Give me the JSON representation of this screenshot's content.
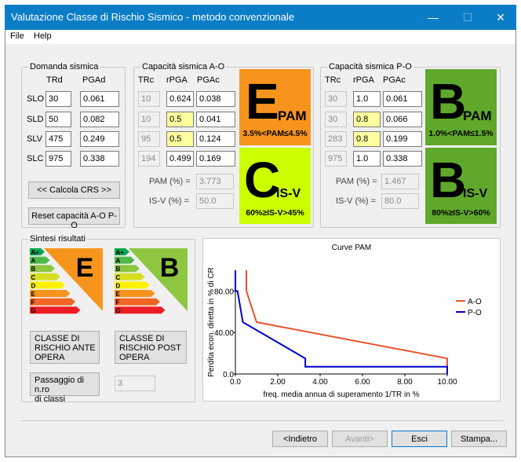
{
  "window": {
    "title": "Valutazione Classe di Rischio Sismico - metodo convenzionale",
    "minimize": "—",
    "maximize": "☐",
    "close": "✕"
  },
  "menu": {
    "file": "File",
    "help": "Help"
  },
  "domanda": {
    "title": "Domanda sismica",
    "col_trd": "TRd",
    "col_pgad": "PGAd",
    "rows": [
      {
        "label": "SLO",
        "trd": "30",
        "pgad": "0.061"
      },
      {
        "label": "SLD",
        "trd": "50",
        "pgad": "0.082"
      },
      {
        "label": "SLV",
        "trd": "475",
        "pgad": "0.249"
      },
      {
        "label": "SLC",
        "trd": "975",
        "pgad": "0.338"
      }
    ],
    "calc_button": "<< Calcola CRS >>",
    "reset_button": "Reset capacità A-O P-O"
  },
  "ao": {
    "title": "Capacità sismica  A-O",
    "col_trc": "TRc",
    "col_rpga": "rPGA",
    "col_pgac": "PGAc",
    "rows": [
      {
        "trc": "10",
        "rpga": "0.624",
        "pgac": "0.038"
      },
      {
        "trc": "10",
        "rpga": "0.5",
        "pgac": "0.041"
      },
      {
        "trc": "95",
        "rpga": "0.5",
        "pgac": "0.124"
      },
      {
        "trc": "194",
        "rpga": "0.499",
        "pgac": "0.169"
      }
    ],
    "pam_label": "PAM (%) =",
    "pam_value": "3.773",
    "isv_label": "IS-V (%) =",
    "isv_value": "50.0",
    "pam_class": {
      "letter": "E",
      "sub": "PAM",
      "range": "3.5%<PAM≤4.5%",
      "color": "#f7941d"
    },
    "isv_class": {
      "letter": "C",
      "sub": "IS-V",
      "range": "60%≥IS-V>45%",
      "color": "#ccff00"
    }
  },
  "po": {
    "title": "Capacità sismica  P-O",
    "col_trc": "TRc",
    "col_rpga": "rPGA",
    "col_pgac": "PGAc",
    "rows": [
      {
        "trc": "30",
        "rpga": "1.0",
        "pgac": "0.061"
      },
      {
        "trc": "30",
        "rpga": "0.8",
        "pgac": "0.066"
      },
      {
        "trc": "283",
        "rpga": "0.8",
        "pgac": "0.199"
      },
      {
        "trc": "975",
        "rpga": "1.0",
        "pgac": "0.338"
      }
    ],
    "pam_label": "PAM (%) =",
    "pam_value": "1.467",
    "isv_label": "IS-V (%) =",
    "isv_value": "80.0",
    "pam_class": {
      "letter": "B",
      "sub": "PAM",
      "range": "1.0%<PAM≤1.5%",
      "color": "#5fa82b"
    },
    "isv_class": {
      "letter": "B",
      "sub": "IS-V",
      "range": "80%≥IS-V>60%",
      "color": "#5fa82b"
    }
  },
  "sintesi": {
    "title": "Sintesi risultati",
    "scale_letters": [
      "A+",
      "A",
      "B",
      "C",
      "D",
      "E",
      "F",
      "G"
    ],
    "scale_colors": [
      "#00a650",
      "#4cb848",
      "#8dc63f",
      "#d7df23",
      "#fff200",
      "#f7941d",
      "#f26522",
      "#ed1c24"
    ],
    "ante_class": "E",
    "ante_color": "#f7941d",
    "post_class": "B",
    "post_color": "#8dc63f",
    "ante_button": "CLASSE DI\nRISCHIO ANTE\nOPERA",
    "post_button": "CLASSE DI\nRISCHIO POST\nOPERA",
    "passaggio_button": "Passaggio di n.ro\ndi classi",
    "passaggio_value": "3"
  },
  "chart_data": {
    "type": "line",
    "title": "Curve PAM",
    "xlabel": "freq. media annua di superamento 1/TR in %",
    "ylabel": "Perdita econ. diretta in % di CR",
    "xlim": [
      0,
      10
    ],
    "ylim": [
      0,
      100
    ],
    "xticks": [
      "0.0",
      "2.00",
      "4.00",
      "6.00",
      "8.00",
      "10.00"
    ],
    "yticks": [
      "0.0",
      "40.00",
      "80.00"
    ],
    "legend": "right",
    "series": [
      {
        "name": "A-O",
        "color": "#e8532a",
        "points": [
          [
            0.52,
            100
          ],
          [
            0.52,
            80
          ],
          [
            1.0,
            50
          ],
          [
            10.0,
            15
          ],
          [
            10.0,
            0
          ]
        ]
      },
      {
        "name": "P-O",
        "color": "#0000cc",
        "points": [
          [
            0.0,
            100
          ],
          [
            0.0,
            80
          ],
          [
            0.1,
            80
          ],
          [
            0.35,
            50
          ],
          [
            3.3,
            15
          ],
          [
            3.3,
            7
          ],
          [
            10.0,
            7
          ],
          [
            10.0,
            0
          ]
        ]
      }
    ]
  },
  "footer": {
    "back": "<Indietro",
    "next": "Avanti>",
    "exit": "Esci",
    "print": "Stampa..."
  }
}
